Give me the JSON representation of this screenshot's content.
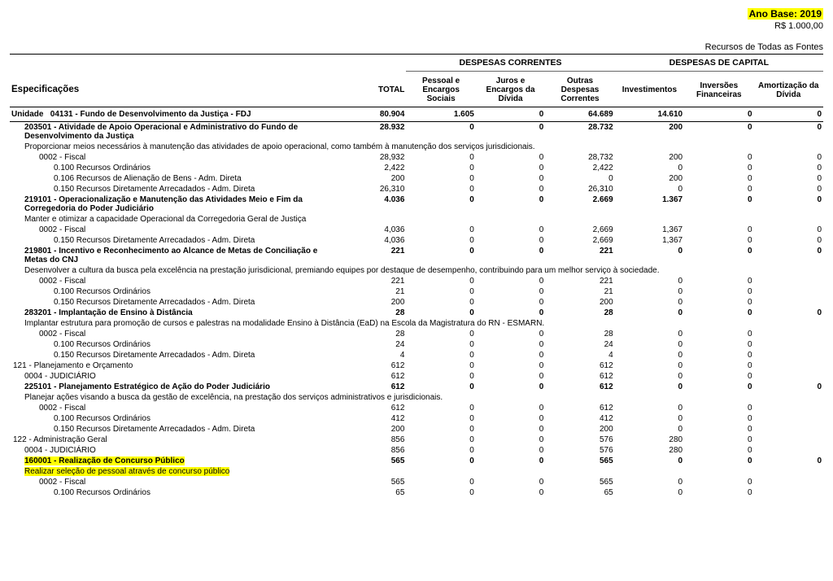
{
  "header": {
    "ano_base": "Ano Base: 2019",
    "unit": "R$ 1.000,00",
    "recursos": "Recursos de Todas as Fontes"
  },
  "columns": {
    "c0": "Especificações",
    "c1": "TOTAL",
    "g1": "DESPESAS CORRENTES",
    "g2": "DESPESAS DE CAPITAL",
    "c2": "Pessoal e Encargos Sociais",
    "c3": "Juros e Encargos da Dívida",
    "c4": "Outras Despesas Correntes",
    "c5": "Investimentos",
    "c6": "Inversões Financeiras",
    "c7": "Amortização da Dívida"
  },
  "rows": [
    {
      "type": "unidade",
      "label_prefix": "Unidade",
      "label": "04131 - Fundo de Desenvolvimento da Justiça - FDJ",
      "v": [
        "80.904",
        "1.605",
        "0",
        "64.689",
        "14.610",
        "0",
        "0"
      ]
    },
    {
      "type": "item",
      "bold": true,
      "indent": 1,
      "label": "203501 - Atividade de Apoio Operacional e Administrativo do Fundo de Desenvolvimento da Justiça",
      "v": [
        "28.932",
        "0",
        "0",
        "28.732",
        "200",
        "0",
        "0"
      ]
    },
    {
      "type": "desc",
      "indent": 1,
      "label": "Proporcionar meios necessários à manutenção das atividades de apoio operacional, como também à manutenção dos serviços jurisdicionais."
    },
    {
      "type": "item",
      "indent": 2,
      "label": "0002 - Fiscal",
      "v": [
        "28,932",
        "0",
        "0",
        "28,732",
        "200",
        "0",
        "0"
      ]
    },
    {
      "type": "item",
      "indent": 3,
      "label": "0.100 Recursos Ordinários",
      "v": [
        "2,422",
        "0",
        "0",
        "2,422",
        "0",
        "0",
        "0"
      ]
    },
    {
      "type": "item",
      "indent": 3,
      "label": "0.106 Recursos de Alienação de Bens - Adm. Direta",
      "v": [
        "200",
        "0",
        "0",
        "0",
        "200",
        "0",
        "0"
      ]
    },
    {
      "type": "item",
      "indent": 3,
      "label": "0.150 Recursos Diretamente Arrecadados - Adm. Direta",
      "v": [
        "26,310",
        "0",
        "0",
        "26,310",
        "0",
        "0",
        "0"
      ]
    },
    {
      "type": "item",
      "bold": true,
      "indent": 1,
      "label": "219101 - Operacionalização e Manutenção das Atividades Meio e Fim da Corregedoria do Poder Judiciário",
      "v": [
        "4.036",
        "0",
        "0",
        "2.669",
        "1.367",
        "0",
        "0"
      ]
    },
    {
      "type": "desc",
      "indent": 1,
      "label": "Manter e otimizar a capacidade Operacional da Corregedoria Geral de Justiça"
    },
    {
      "type": "item",
      "indent": 2,
      "label": "0002 - Fiscal",
      "v": [
        "4,036",
        "0",
        "0",
        "2,669",
        "1,367",
        "0",
        "0"
      ]
    },
    {
      "type": "item",
      "indent": 3,
      "label": "0.150 Recursos Diretamente Arrecadados - Adm. Direta",
      "v": [
        "4,036",
        "0",
        "0",
        "2,669",
        "1,367",
        "0",
        "0"
      ]
    },
    {
      "type": "item",
      "bold": true,
      "indent": 1,
      "label": "219801 - Incentivo e Reconhecimento ao Alcance de Metas de Conciliação e Metas do CNJ",
      "v": [
        "221",
        "0",
        "0",
        "221",
        "0",
        "0",
        "0"
      ]
    },
    {
      "type": "desc",
      "indent": 1,
      "label": "Desenvolver a cultura da busca pela excelência na prestação jurisdicional, premiando equipes por destaque de desempenho, contribuindo para um melhor serviço à sociedade."
    },
    {
      "type": "item",
      "indent": 2,
      "label": "0002 - Fiscal",
      "v": [
        "221",
        "0",
        "0",
        "221",
        "0",
        "0"
      ]
    },
    {
      "type": "item",
      "indent": 3,
      "label": "0.100 Recursos Ordinários",
      "v": [
        "21",
        "0",
        "0",
        "21",
        "0",
        "0"
      ]
    },
    {
      "type": "item",
      "indent": 3,
      "label": "0.150 Recursos Diretamente Arrecadados - Adm. Direta",
      "v": [
        "200",
        "0",
        "0",
        "200",
        "0",
        "0"
      ]
    },
    {
      "type": "item",
      "bold": true,
      "indent": 1,
      "label": "283201 - Implantação de Ensino à Distância",
      "v": [
        "28",
        "0",
        "0",
        "28",
        "0",
        "0",
        "0"
      ]
    },
    {
      "type": "desc",
      "indent": 1,
      "label": "Implantar estrutura para promoção de cursos e palestras na modalidade Ensino à Distância (EaD) na Escola da Magistratura do RN - ESMARN."
    },
    {
      "type": "item",
      "indent": 2,
      "label": "0002 - Fiscal",
      "v": [
        "28",
        "0",
        "0",
        "28",
        "0",
        "0"
      ]
    },
    {
      "type": "item",
      "indent": 3,
      "label": "0.100 Recursos Ordinários",
      "v": [
        "24",
        "0",
        "0",
        "24",
        "0",
        "0"
      ]
    },
    {
      "type": "item",
      "indent": 3,
      "label": "0.150 Recursos Diretamente Arrecadados - Adm. Direta",
      "v": [
        "4",
        "0",
        "0",
        "4",
        "0",
        "0"
      ]
    },
    {
      "type": "item",
      "indent": 0,
      "label": "121 - Planejamento e Orçamento",
      "v": [
        "612",
        "0",
        "0",
        "612",
        "0",
        "0"
      ]
    },
    {
      "type": "item",
      "indent": 1,
      "label": "0004 - JUDICIÁRIO",
      "v": [
        "612",
        "0",
        "0",
        "612",
        "0",
        "0"
      ]
    },
    {
      "type": "item",
      "bold": true,
      "indent": 1,
      "label": "225101 - Planejamento Estratégico de Ação do Poder Judiciário",
      "v": [
        "612",
        "0",
        "0",
        "612",
        "0",
        "0",
        "0"
      ]
    },
    {
      "type": "desc",
      "indent": 1,
      "label": "Planejar ações visando a busca da gestão de excelência, na prestação dos serviços administrativos e jurisdicionais."
    },
    {
      "type": "item",
      "indent": 2,
      "label": "0002 - Fiscal",
      "v": [
        "612",
        "0",
        "0",
        "612",
        "0",
        "0"
      ]
    },
    {
      "type": "item",
      "indent": 3,
      "label": "0.100 Recursos Ordinários",
      "v": [
        "412",
        "0",
        "0",
        "412",
        "0",
        "0"
      ]
    },
    {
      "type": "item",
      "indent": 3,
      "label": "0.150 Recursos Diretamente Arrecadados - Adm. Direta",
      "v": [
        "200",
        "0",
        "0",
        "200",
        "0",
        "0"
      ]
    },
    {
      "type": "item",
      "indent": 0,
      "label": "122 - Administração Geral",
      "v": [
        "856",
        "0",
        "0",
        "576",
        "280",
        "0"
      ]
    },
    {
      "type": "item",
      "indent": 1,
      "label": "0004 - JUDICIÁRIO",
      "v": [
        "856",
        "0",
        "0",
        "576",
        "280",
        "0"
      ]
    },
    {
      "type": "item",
      "bold": true,
      "highlight": true,
      "indent": 1,
      "label": "160001 - Realização de Concurso Público",
      "v": [
        "565",
        "0",
        "0",
        "565",
        "0",
        "0",
        "0"
      ]
    },
    {
      "type": "desc",
      "highlight": true,
      "indent": 1,
      "label": "Realizar seleção de pessoal através de concurso público"
    },
    {
      "type": "item",
      "indent": 2,
      "label": "0002 - Fiscal",
      "v": [
        "565",
        "0",
        "0",
        "565",
        "0",
        "0"
      ]
    },
    {
      "type": "item",
      "indent": 3,
      "label": "0.100 Recursos Ordinários",
      "v": [
        "65",
        "0",
        "0",
        "65",
        "0",
        "0"
      ]
    }
  ]
}
